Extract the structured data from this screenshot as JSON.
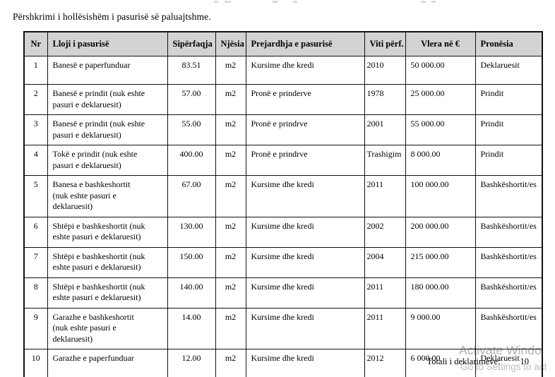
{
  "document": {
    "title": "Përshkrimi i hollësishëm i pasurisë së paluajtshme."
  },
  "table": {
    "headers": [
      "Nr",
      "Lloji i pasurisë",
      "Sipërfaqja",
      "Njësia",
      "Prejardhja e pasurisë",
      "Viti përf.",
      "Vlera në €",
      "Pronësia"
    ],
    "rows": [
      [
        "1",
        "Banesë e paperfunduar",
        "83.51",
        "m2",
        "Kursime dhe kredi",
        "2010",
        "50 000.00",
        "Deklaruesit"
      ],
      [
        "2",
        "Banesë e prindit (nuk eshte\npasuri e deklaruesit)",
        "57.00",
        "m2",
        "Pronë e prinderve",
        "1978",
        "25 000.00",
        "Prindit"
      ],
      [
        "3",
        "Banesë e prindit (nuk eshte\npasuri e deklaruesit)",
        "55.00",
        "m2",
        "Pronë e prindrve",
        "2001",
        "55 000.00",
        "Prindit"
      ],
      [
        "4",
        "Tokë e prindit (nuk eshte\npasuri e deklaruesit)",
        "400.00",
        "m2",
        "Pronë e prindrve",
        "Trashigim",
        "8 000.00",
        "Prindit"
      ],
      [
        "5",
        "Banesa e bashkeshortit\n(nuk eshte pasuri e\ndeklaruesit)",
        "67.00",
        "m2",
        "Kursime dhe kredi",
        "2011",
        "100 000.00",
        "Bashkëshortit/es"
      ],
      [
        "6",
        "Shtëpi e bashkeshortit (nuk\neshte pasuri e deklaruesit)",
        "130.00",
        "m2",
        "Kursime dhe kredi",
        "2002",
        "200 000.00",
        "Bashkëshortit/es"
      ],
      [
        "7",
        "Shtëpi e bashkeshortit (nuk\neshte pasuri e deklaruesit)",
        "150.00",
        "m2",
        "Kursime dhe kredi",
        "2004",
        "215 000.00",
        "Bashkëshortit/es"
      ],
      [
        "8",
        "Shtëpi e bashkeshortit (nuk\neshte pasuri e deklaruesit)",
        "140.00",
        "m2",
        "Kursime dhe kredi",
        "2011",
        "180 000.00",
        "Bashkëshortit/es"
      ],
      [
        "9",
        "Garazhe e bashkeshortit\n(nuk eshte pasuri e\ndeklaruesit)",
        "14.00",
        "m2",
        "Kursime dhe kredi",
        "2011",
        "9 000.00",
        "Bashkëshortit/es"
      ],
      [
        "10",
        "Garazhe e paperfunduar",
        "12.00",
        "m2",
        "Kursime dhe kredi",
        "2012",
        "6 000.00",
        "Deklaruesit"
      ]
    ]
  },
  "footer": {
    "total_label": "Totali i deklarimeve:",
    "total_value": "10"
  },
  "watermark": {
    "line1": "Activate Windo",
    "line2": "Go to Settings to act",
    "color": "#b3b0b0"
  },
  "colors": {
    "header_bg": "#d3d3d3",
    "border": "#111111",
    "text": "#000000"
  }
}
